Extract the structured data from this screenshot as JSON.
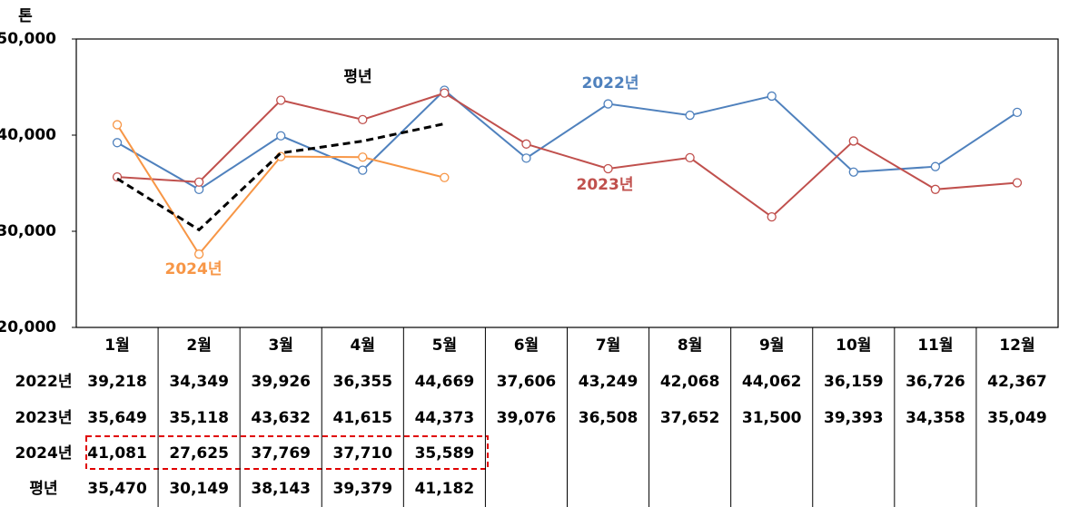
{
  "chart_data": {
    "type": "line",
    "y_label": "톤",
    "categories": [
      "1월",
      "2월",
      "3월",
      "4월",
      "5월",
      "6월",
      "7월",
      "8월",
      "9월",
      "10월",
      "11월",
      "12월"
    ],
    "ylim": [
      20000,
      50000
    ],
    "yticks": [
      {
        "value": 20000,
        "label": "20,000"
      },
      {
        "value": 30000,
        "label": "30,000"
      },
      {
        "value": 40000,
        "label": "40,000"
      },
      {
        "value": 50000,
        "label": "50,000"
      }
    ],
    "series": [
      {
        "name": "2022년",
        "color": "#4f81bd",
        "style": "solid",
        "markers": true,
        "values": [
          39218,
          34349,
          39926,
          36355,
          44669,
          37606,
          43249,
          42068,
          44062,
          36159,
          36726,
          42367
        ],
        "value_labels": [
          "39,218",
          "34,349",
          "39,926",
          "36,355",
          "44,669",
          "37,606",
          "43,249",
          "42,068",
          "44,062",
          "36,159",
          "36,726",
          "42,367"
        ]
      },
      {
        "name": "2023년",
        "color": "#c0504d",
        "style": "solid",
        "markers": true,
        "values": [
          35649,
          35118,
          43632,
          41615,
          44373,
          39076,
          36508,
          37652,
          31500,
          39393,
          34358,
          35049
        ],
        "value_labels": [
          "35,649",
          "35,118",
          "43,632",
          "41,615",
          "44,373",
          "39,076",
          "36,508",
          "37,652",
          "31,500",
          "39,393",
          "34,358",
          "35,049"
        ]
      },
      {
        "name": "2024년",
        "color": "#f79646",
        "style": "solid",
        "markers": true,
        "values": [
          41081,
          27625,
          37769,
          37710,
          35589,
          null,
          null,
          null,
          null,
          null,
          null,
          null
        ],
        "value_labels": [
          "41,081",
          "27,625",
          "37,769",
          "37,710",
          "35,589",
          null,
          null,
          null,
          null,
          null,
          null,
          null
        ]
      },
      {
        "name": "평년",
        "color": "#000000",
        "style": "dashed",
        "markers": false,
        "values": [
          35470,
          30149,
          38143,
          39379,
          41182,
          null,
          null,
          null,
          null,
          null,
          null,
          null
        ],
        "value_labels": [
          "35,470",
          "30,149",
          "38,143",
          "39,379",
          "41,182",
          null,
          null,
          null,
          null,
          null,
          null,
          null
        ]
      }
    ]
  }
}
